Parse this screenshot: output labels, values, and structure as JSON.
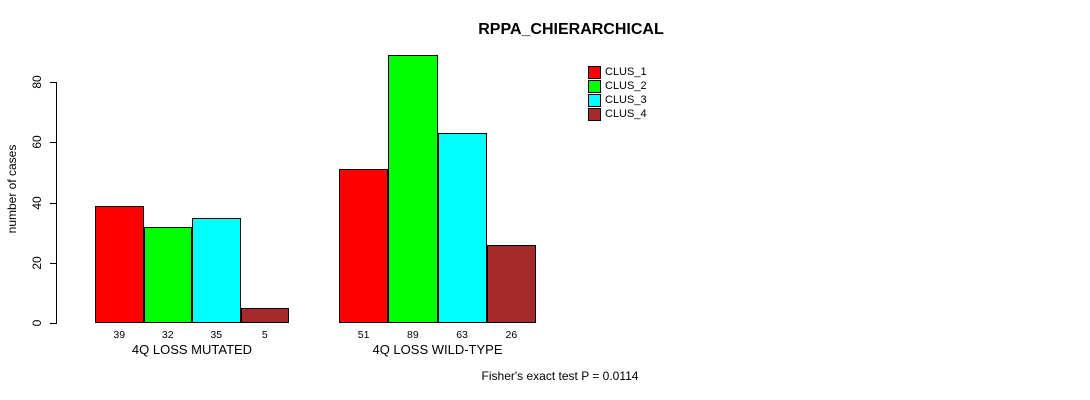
{
  "chart_data": {
    "type": "bar",
    "title": "RPPA_CHIERARCHICAL",
    "ylabel": "number of cases",
    "xlabel": "",
    "categories": [
      "4Q LOSS MUTATED",
      "4Q LOSS WILD-TYPE"
    ],
    "series": [
      {
        "name": "CLUS_1",
        "color": "#ff0000",
        "values": [
          39,
          51
        ]
      },
      {
        "name": "CLUS_2",
        "color": "#00ff00",
        "values": [
          32,
          89
        ]
      },
      {
        "name": "CLUS_3",
        "color": "#00ffff",
        "values": [
          35,
          63
        ]
      },
      {
        "name": "CLUS_4",
        "color": "#a52a2a",
        "values": [
          5,
          26
        ]
      }
    ],
    "yticks": [
      0,
      20,
      40,
      60,
      80
    ],
    "ylim": [
      0,
      89
    ],
    "bar_labels_shown": true,
    "grid": false,
    "legend_position": "top-right"
  },
  "footnote": "Fisher's exact test P = 0.0114"
}
